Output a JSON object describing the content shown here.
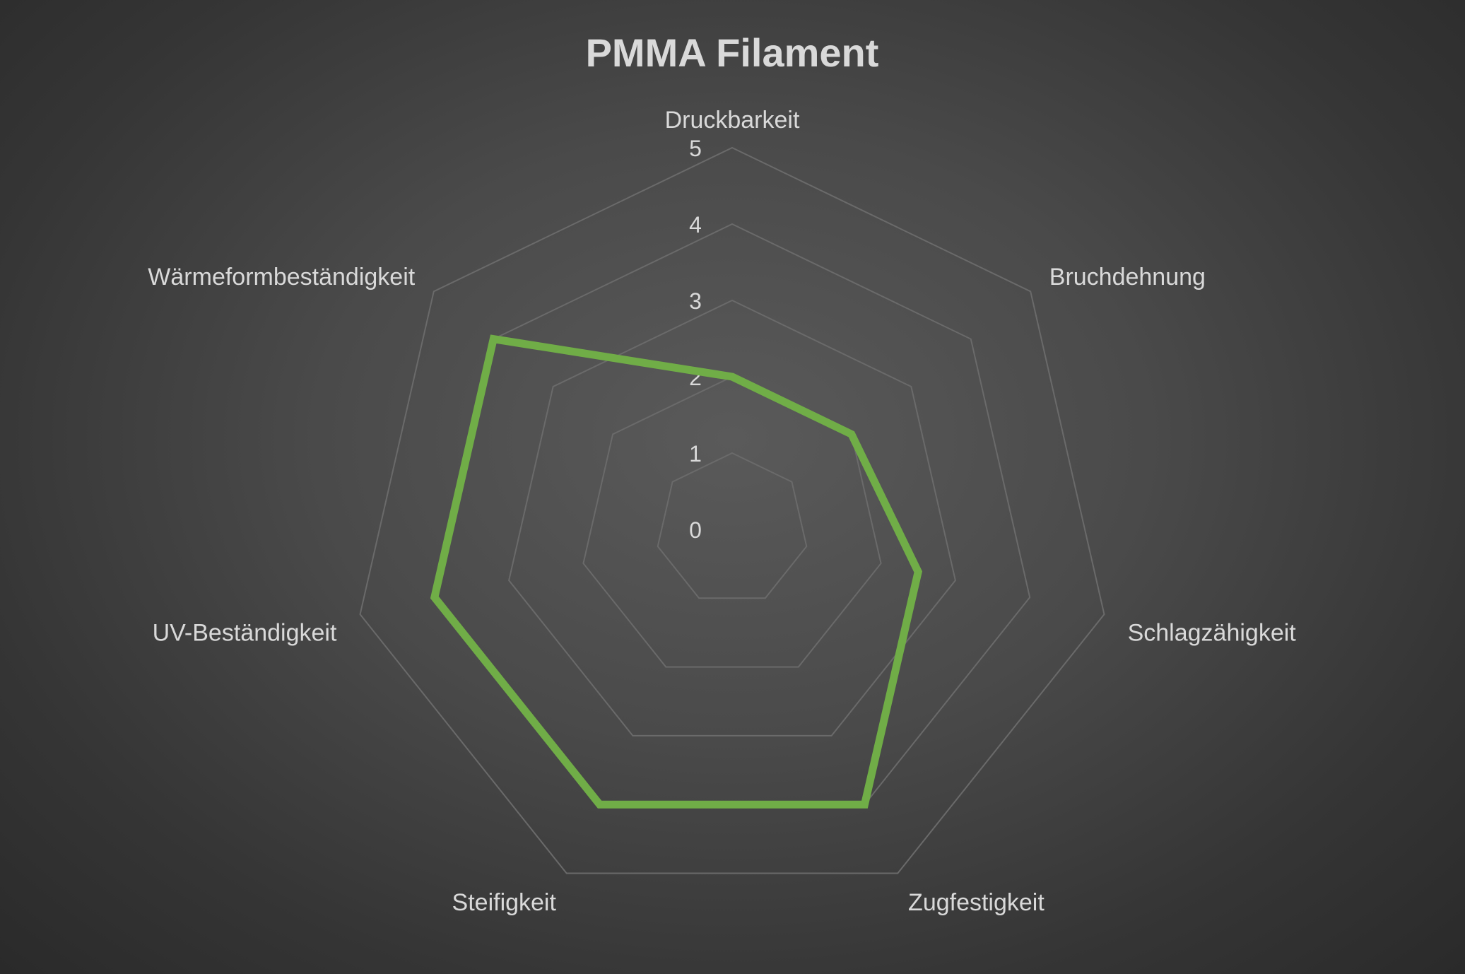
{
  "chart_data": {
    "type": "radar",
    "title": "PMMA Filament",
    "categories": [
      "Druckbarkeit",
      "Bruchdehnung",
      "Schlagzähigkeit",
      "Zugfestigkeit",
      "Steifigkeit",
      "UV-Beständigkeit",
      "Wärmeformbeständigkeit"
    ],
    "series": [
      {
        "values": [
          2,
          2,
          2.5,
          4,
          4,
          4,
          4
        ],
        "color": "#70ad47"
      }
    ],
    "ticks": [
      "0",
      "1",
      "2",
      "3",
      "4",
      "5"
    ],
    "rlim": [
      0,
      5
    ],
    "grid": true,
    "legend": "none",
    "background": "#404040",
    "grid_color": "#6a6a6a",
    "text_color": "#d9d9d9"
  }
}
